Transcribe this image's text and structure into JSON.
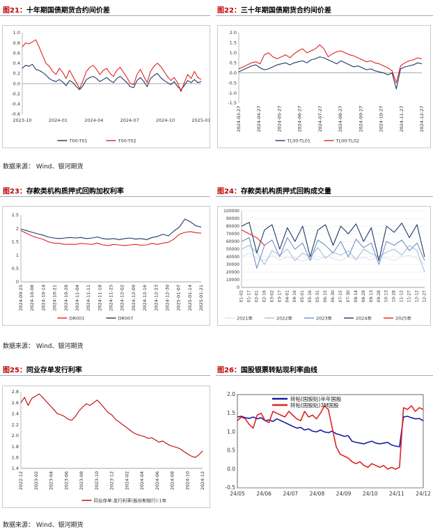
{
  "source_label": "数据来源：",
  "source_text": "Wind、银河期货",
  "panels": [
    {
      "id": "fig21",
      "num": "图21：",
      "title": "十年期国债期货合约间价差"
    },
    {
      "id": "fig22",
      "num": "图22：",
      "title": "三十年期国债期货合约间价差"
    },
    {
      "id": "fig23",
      "num": "图23：",
      "title": "存款类机构质押式回购加权利率"
    },
    {
      "id": "fig24",
      "num": "图24：",
      "title": "存款类机构质押式回购成交量"
    },
    {
      "id": "fig25",
      "num": "图25：",
      "title": "同业存单发行利率"
    },
    {
      "id": "fig26",
      "num": "图26：",
      "title": "国股银票转贴现利率曲线"
    }
  ],
  "colors": {
    "navy": "#1f3864",
    "red": "#e02020",
    "lightblue": "#a6bddb",
    "midblue": "#6f8fc4",
    "darkred": "#c00000"
  },
  "chart_data": [
    {
      "id": "fig21",
      "type": "line",
      "title": "十年期国债期货合约间价差",
      "ylim": [
        -0.6,
        1.0
      ],
      "yticks": [
        "1.0",
        "0.8",
        "0.6",
        "0.4",
        "0.2",
        "0.0",
        "-0.2",
        "-0.4",
        "-0.6"
      ],
      "xticks": [
        "2023-10",
        "2024-01",
        "2024-04",
        "2024-07",
        "2024-10",
        "2025-01"
      ],
      "series": [
        {
          "name": "T00-T01",
          "color": "#1f3864",
          "values": [
            0.3,
            0.36,
            0.34,
            0.38,
            0.28,
            0.26,
            0.22,
            0.17,
            0.1,
            0.06,
            0.04,
            0.08,
            0.03,
            -0.04,
            0.06,
            0.02,
            -0.06,
            -0.12,
            -0.04,
            0.08,
            0.12,
            0.14,
            0.1,
            0.04,
            0.08,
            0.12,
            0.06,
            0.02,
            0.1,
            0.14,
            0.08,
            0.02,
            -0.06,
            -0.08,
            0.06,
            0.12,
            0.04,
            -0.06,
            0.1,
            0.16,
            0.2,
            0.12,
            0.06,
            0.02,
            -0.02,
            0.04,
            -0.06,
            -0.12,
            -0.04,
            0.06,
            0.02,
            0.08,
            0.02,
            0.04
          ]
        },
        {
          "name": "T00-T02",
          "color": "#e02020",
          "values": [
            0.72,
            0.8,
            0.78,
            0.82,
            0.86,
            0.72,
            0.56,
            0.4,
            0.34,
            0.24,
            0.18,
            0.3,
            0.22,
            0.1,
            0.26,
            0.14,
            0.02,
            -0.1,
            0.06,
            0.24,
            0.32,
            0.36,
            0.28,
            0.18,
            0.26,
            0.3,
            0.2,
            0.14,
            0.26,
            0.32,
            0.22,
            0.12,
            0.0,
            -0.02,
            0.18,
            0.28,
            0.14,
            0.02,
            0.24,
            0.34,
            0.4,
            0.34,
            0.24,
            0.14,
            0.06,
            0.12,
            0.02,
            -0.16,
            0.02,
            0.18,
            0.1,
            0.24,
            0.12,
            0.08
          ]
        }
      ]
    },
    {
      "id": "fig22",
      "type": "line",
      "title": "三十年期国债期货合约间价差",
      "ylim": [
        -1.5,
        2.0
      ],
      "yticks": [
        "2.0",
        "1.5",
        "1.0",
        "0.5",
        "0.0",
        "-0.5",
        "-1.0",
        "-1.5"
      ],
      "xticks": [
        "2024-03-27",
        "2024-04-27",
        "2024-05-27",
        "2024-06-27",
        "2024-07-27",
        "2024-08-27",
        "2024-09-27",
        "2024-10-27",
        "2024-11-27",
        "2024-12-27"
      ],
      "series": [
        {
          "name": "TL00-TL01",
          "color": "#1f3864",
          "values": [
            0.05,
            0.15,
            0.25,
            0.35,
            0.4,
            0.25,
            0.15,
            0.2,
            0.3,
            0.4,
            0.45,
            0.5,
            0.4,
            0.5,
            0.55,
            0.6,
            0.5,
            0.65,
            0.7,
            0.8,
            0.75,
            0.65,
            0.55,
            0.45,
            0.6,
            0.5,
            0.4,
            0.3,
            0.35,
            0.25,
            0.15,
            0.2,
            0.1,
            0.05,
            0.0,
            -0.1,
            0.0,
            -0.8,
            0.2,
            0.3,
            0.35,
            0.4,
            0.5,
            0.45
          ]
        },
        {
          "name": "TL00-TL02",
          "color": "#e02020",
          "values": [
            0.2,
            0.3,
            0.4,
            0.5,
            0.55,
            0.45,
            0.9,
            1.0,
            0.8,
            0.7,
            0.8,
            0.9,
            0.75,
            0.95,
            1.1,
            1.2,
            1.0,
            1.1,
            1.2,
            1.4,
            1.2,
            0.8,
            0.95,
            1.05,
            1.1,
            1.0,
            0.9,
            0.85,
            0.75,
            0.65,
            0.55,
            0.6,
            0.5,
            0.45,
            0.35,
            0.25,
            0.1,
            -0.5,
            0.35,
            0.5,
            0.6,
            0.65,
            0.75,
            0.7
          ]
        }
      ]
    },
    {
      "id": "fig23",
      "type": "line",
      "title": "存款类机构质押式回购加权利率",
      "ylim": [
        0,
        2.5
      ],
      "yticks": [
        "2.5",
        "2",
        "1.5",
        "1",
        "0.5",
        "0"
      ],
      "xticks": [
        "2024-09-25",
        "2024-10-08",
        "2024-10-14",
        "2024-10-21",
        "2024-10-28",
        "2024-11-04",
        "2024-11-11",
        "2024-11-18",
        "2024-11-25",
        "2024-12-02",
        "2024-12-09",
        "2024-12-16",
        "2024-12-23",
        "2024-12-30",
        "2025-01-07",
        "2025-01-14",
        "2025-01-21"
      ],
      "series": [
        {
          "name": "DR001",
          "color": "#e02020",
          "values": [
            1.92,
            1.82,
            1.72,
            1.65,
            1.6,
            1.5,
            1.45,
            1.44,
            1.4,
            1.41,
            1.4,
            1.44,
            1.42,
            1.4,
            1.45,
            1.38,
            1.36,
            1.4,
            1.38,
            1.36,
            1.38,
            1.4,
            1.37,
            1.38,
            1.44,
            1.4,
            1.45,
            1.48,
            1.6,
            1.78,
            1.85,
            1.88,
            1.84,
            1.82
          ]
        },
        {
          "name": "DR007",
          "color": "#1f3864",
          "values": [
            1.98,
            1.92,
            1.86,
            1.8,
            1.75,
            1.68,
            1.64,
            1.62,
            1.64,
            1.66,
            1.64,
            1.66,
            1.62,
            1.64,
            1.68,
            1.62,
            1.6,
            1.62,
            1.58,
            1.62,
            1.64,
            1.6,
            1.62,
            1.58,
            1.66,
            1.7,
            1.78,
            1.72,
            1.9,
            2.05,
            2.35,
            2.25,
            2.1,
            2.05
          ]
        }
      ]
    },
    {
      "id": "fig24",
      "type": "line",
      "title": "存款类机构质押式回购成交量",
      "ylim": [
        0,
        100000
      ],
      "yticks": [
        "100000",
        "90000",
        "80000",
        "70000",
        "60000",
        "50000",
        "40000",
        "30000",
        "20000",
        "10000",
        "0"
      ],
      "xticks": [
        "01-02",
        "01-17",
        "02-01",
        "02-16",
        "03-02",
        "03-17",
        "04-01",
        "04-16",
        "05-01",
        "05-16",
        "05-31",
        "06-15",
        "06-30",
        "07-15",
        "07-30",
        "08-14",
        "08-29",
        "09-13",
        "09-28",
        "10-13",
        "10-28",
        "11-12",
        "11-27",
        "12-12",
        "12-27"
      ],
      "xticks_display": [
        "01-02",
        "01-17",
        "02-01",
        "02-16",
        "03-02",
        "03-17",
        "04-01",
        "04-16",
        "05-01",
        "05-16",
        "05-31",
        "06-15",
        "06-30",
        "07-15",
        "07-30",
        "08-14",
        "08-29",
        "09-13",
        "09-28",
        "10-13",
        "10-28",
        "11-12",
        "11-27",
        "12-12",
        "12-27"
      ],
      "series": [
        {
          "name": "2021年",
          "color": "#dbe4f1",
          "values": [
            40000,
            45000,
            38000,
            35000,
            42000,
            36000,
            40000,
            38000,
            34000,
            39000,
            36000,
            41000,
            38000,
            35000,
            40000,
            37000,
            39000,
            36000,
            41000,
            38000,
            35000,
            40000,
            42000,
            38000,
            30000
          ]
        },
        {
          "name": "2022年",
          "color": "#a6bddb",
          "values": [
            50000,
            55000,
            45000,
            30000,
            48000,
            42000,
            50000,
            35000,
            45000,
            40000,
            52000,
            38000,
            46000,
            42000,
            48000,
            36000,
            50000,
            44000,
            40000,
            46000,
            50000,
            42000,
            55000,
            48000,
            20000
          ]
        },
        {
          "name": "2023年",
          "color": "#6f8fc4",
          "values": [
            60000,
            65000,
            25000,
            55000,
            62000,
            40000,
            65000,
            50000,
            58000,
            35000,
            62000,
            55000,
            45000,
            60000,
            40000,
            63000,
            52000,
            58000,
            30000,
            60000,
            55000,
            62000,
            48000,
            58000,
            35000
          ]
        },
        {
          "name": "2024年",
          "color": "#1f3864",
          "values": [
            80000,
            85000,
            45000,
            75000,
            82000,
            50000,
            78000,
            60000,
            80000,
            40000,
            75000,
            82000,
            55000,
            80000,
            70000,
            83000,
            60000,
            78000,
            35000,
            80000,
            72000,
            84000,
            65000,
            82000,
            40000
          ]
        },
        {
          "name": "2025年",
          "color": "#e02020",
          "values": [
            75000,
            70000,
            65000,
            55000
          ]
        }
      ]
    },
    {
      "id": "fig25",
      "type": "line",
      "title": "同业存单发行利率",
      "ylim": [
        1.4,
        2.8
      ],
      "yticks": [
        "2.8",
        "2.6",
        "2.4",
        "2.2",
        "2.0",
        "1.8",
        "1.6",
        "1.4"
      ],
      "xticks": [
        "2022-12",
        "2023-02",
        "2023-04",
        "2023-06",
        "2023-08",
        "2023-10",
        "2023-12",
        "2024-02",
        "2024-04",
        "2024-06",
        "2024-08",
        "2024-10",
        "2024-12"
      ],
      "series": [
        {
          "name": "同业存单:发行利率(股份制银行):1年",
          "color": "#c00000",
          "values": [
            2.6,
            2.7,
            2.55,
            2.68,
            2.72,
            2.76,
            2.7,
            2.62,
            2.55,
            2.48,
            2.4,
            2.38,
            2.35,
            2.3,
            2.28,
            2.35,
            2.45,
            2.52,
            2.58,
            2.55,
            2.6,
            2.65,
            2.58,
            2.5,
            2.42,
            2.38,
            2.3,
            2.25,
            2.2,
            2.15,
            2.1,
            2.05,
            2.02,
            2.0,
            1.98,
            1.95,
            1.96,
            1.92,
            1.88,
            1.9,
            1.86,
            1.82,
            1.8,
            1.78,
            1.75,
            1.7,
            1.66,
            1.62,
            1.6,
            1.65,
            1.72
          ]
        }
      ]
    },
    {
      "id": "fig26",
      "type": "line",
      "title": "国股银票转贴现利率曲线",
      "ylim": [
        -0.5,
        2.0
      ],
      "yticks": [
        "2.0",
        "1.5",
        "1.0",
        "0.5",
        "0.0",
        "-0.5"
      ],
      "xticks": [
        "24/05",
        "24/06",
        "24/07",
        "24/08",
        "24/09",
        "24/10",
        "24/11",
        "24/12"
      ],
      "series": [
        {
          "name": "转帖(国股贴)半年国股",
          "color": "#1a1aa6",
          "values": [
            1.4,
            1.42,
            1.38,
            1.36,
            1.4,
            1.35,
            1.38,
            1.3,
            1.32,
            1.28,
            1.35,
            1.3,
            1.25,
            1.2,
            1.15,
            1.1,
            1.12,
            1.05,
            1.08,
            1.02,
            1.0,
            1.05,
            1.0,
            0.98,
            1.02,
            0.95,
            0.92,
            0.88,
            0.9,
            0.75,
            0.72,
            0.7,
            0.68,
            0.72,
            0.75,
            0.7,
            0.68,
            0.7,
            0.72,
            0.65,
            0.62,
            0.6,
            1.4,
            1.42,
            1.38,
            1.35,
            1.36,
            1.3
          ]
        },
        {
          "name": "转帖(国股贴)3M国股",
          "color": "#e02020",
          "values": [
            1.3,
            1.4,
            1.35,
            1.2,
            1.1,
            1.45,
            1.5,
            1.3,
            1.25,
            1.55,
            1.5,
            1.45,
            1.4,
            1.55,
            1.45,
            1.35,
            1.3,
            1.55,
            1.4,
            1.45,
            1.35,
            1.5,
            1.7,
            1.6,
            1.1,
            0.6,
            0.4,
            0.35,
            0.3,
            0.2,
            0.15,
            0.2,
            0.1,
            0.05,
            0.15,
            0.1,
            0.05,
            0.1,
            0.0,
            0.05,
            0.0,
            0.05,
            1.65,
            1.6,
            1.7,
            1.55,
            1.65,
            1.6
          ]
        }
      ]
    }
  ]
}
